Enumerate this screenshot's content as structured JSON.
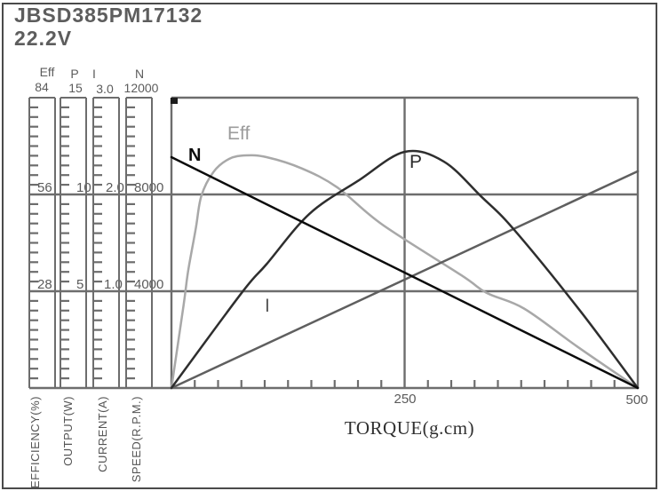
{
  "window": {
    "model": "JBSD385PM17132",
    "voltage": "22.2V"
  },
  "colors": {
    "grid": "#6d6d6d",
    "frame": "#4a4a4a",
    "label_text": "#5a5a5a",
    "curve_eff": "#a8a8a8",
    "curve_n": "#0b0b0b",
    "curve_p": "#2e2e2e",
    "curve_i": "#5f5f5f"
  },
  "chart_data": {
    "type": "line",
    "title": "JBSD385PM17132",
    "subtitle_voltage": "22.2V",
    "xlabel": "TORQUE(g.cm)",
    "x_range": [
      0,
      500
    ],
    "x_major_tick_labels": [
      "250",
      "500"
    ],
    "x_major_tick_values": [
      250,
      500
    ],
    "x_minor_tick_step": 25,
    "grid": "on",
    "axes": [
      {
        "id": "Eff",
        "header": "Eff",
        "unit_label": "EFFICIENCY(%)",
        "max": 84,
        "tick_labels": [
          "84",
          "56",
          "28"
        ]
      },
      {
        "id": "P",
        "header": "P",
        "unit_label": "OUTPUT(W)",
        "max": 15,
        "tick_labels": [
          "15",
          "10",
          "5"
        ]
      },
      {
        "id": "I",
        "header": "I",
        "unit_label": "CURRENT(A)",
        "max": 3,
        "tick_labels": [
          "3.0",
          "2.0",
          "1.0"
        ]
      },
      {
        "id": "N",
        "header": "N",
        "unit_label": "SPEED(R.P.M.)",
        "max": 12000,
        "tick_labels": [
          "12000",
          "8000",
          "4000"
        ]
      }
    ],
    "series": [
      {
        "name": "Eff",
        "axis": "Eff",
        "color": "#a8a8a8",
        "peak": {
          "x": 80,
          "y": 67
        },
        "points": [
          [
            0,
            0
          ],
          [
            13,
            24
          ],
          [
            18,
            34
          ],
          [
            26,
            46
          ],
          [
            32,
            55.5
          ],
          [
            45,
            62.5
          ],
          [
            62,
            66.3
          ],
          [
            80,
            67.3
          ],
          [
            102,
            66.8
          ],
          [
            140,
            63.5
          ],
          [
            178,
            58
          ],
          [
            226,
            47.3
          ],
          [
            311,
            32.6
          ],
          [
            338,
            27.5
          ],
          [
            378,
            23
          ],
          [
            435,
            12
          ],
          [
            500,
            0
          ]
        ]
      },
      {
        "name": "I",
        "axis": "I",
        "color": "#5f5f5f",
        "points": [
          [
            0,
            0
          ],
          [
            500,
            2.24
          ]
        ]
      },
      {
        "name": "P",
        "axis": "P",
        "color": "#2e2e2e",
        "peak": {
          "x": 250,
          "y": 12.2
        },
        "points": [
          [
            0,
            0
          ],
          [
            75,
            4.9
          ],
          [
            102,
            6.4
          ],
          [
            148,
            9.0
          ],
          [
            200,
            10.7
          ],
          [
            250,
            12.2
          ],
          [
            292,
            11.7
          ],
          [
            332,
            9.9
          ],
          [
            367,
            8.2
          ],
          [
            438,
            4.0
          ],
          [
            500,
            0
          ]
        ]
      },
      {
        "name": "N",
        "axis": "N",
        "color": "#0b0b0b",
        "no_load_speed": 9540,
        "stall_torque": 500,
        "points": [
          [
            0,
            9540
          ],
          [
            500,
            0
          ]
        ]
      }
    ],
    "curve_labels": {
      "eff": "Eff",
      "n": "N",
      "p": "P",
      "i": "I"
    }
  }
}
